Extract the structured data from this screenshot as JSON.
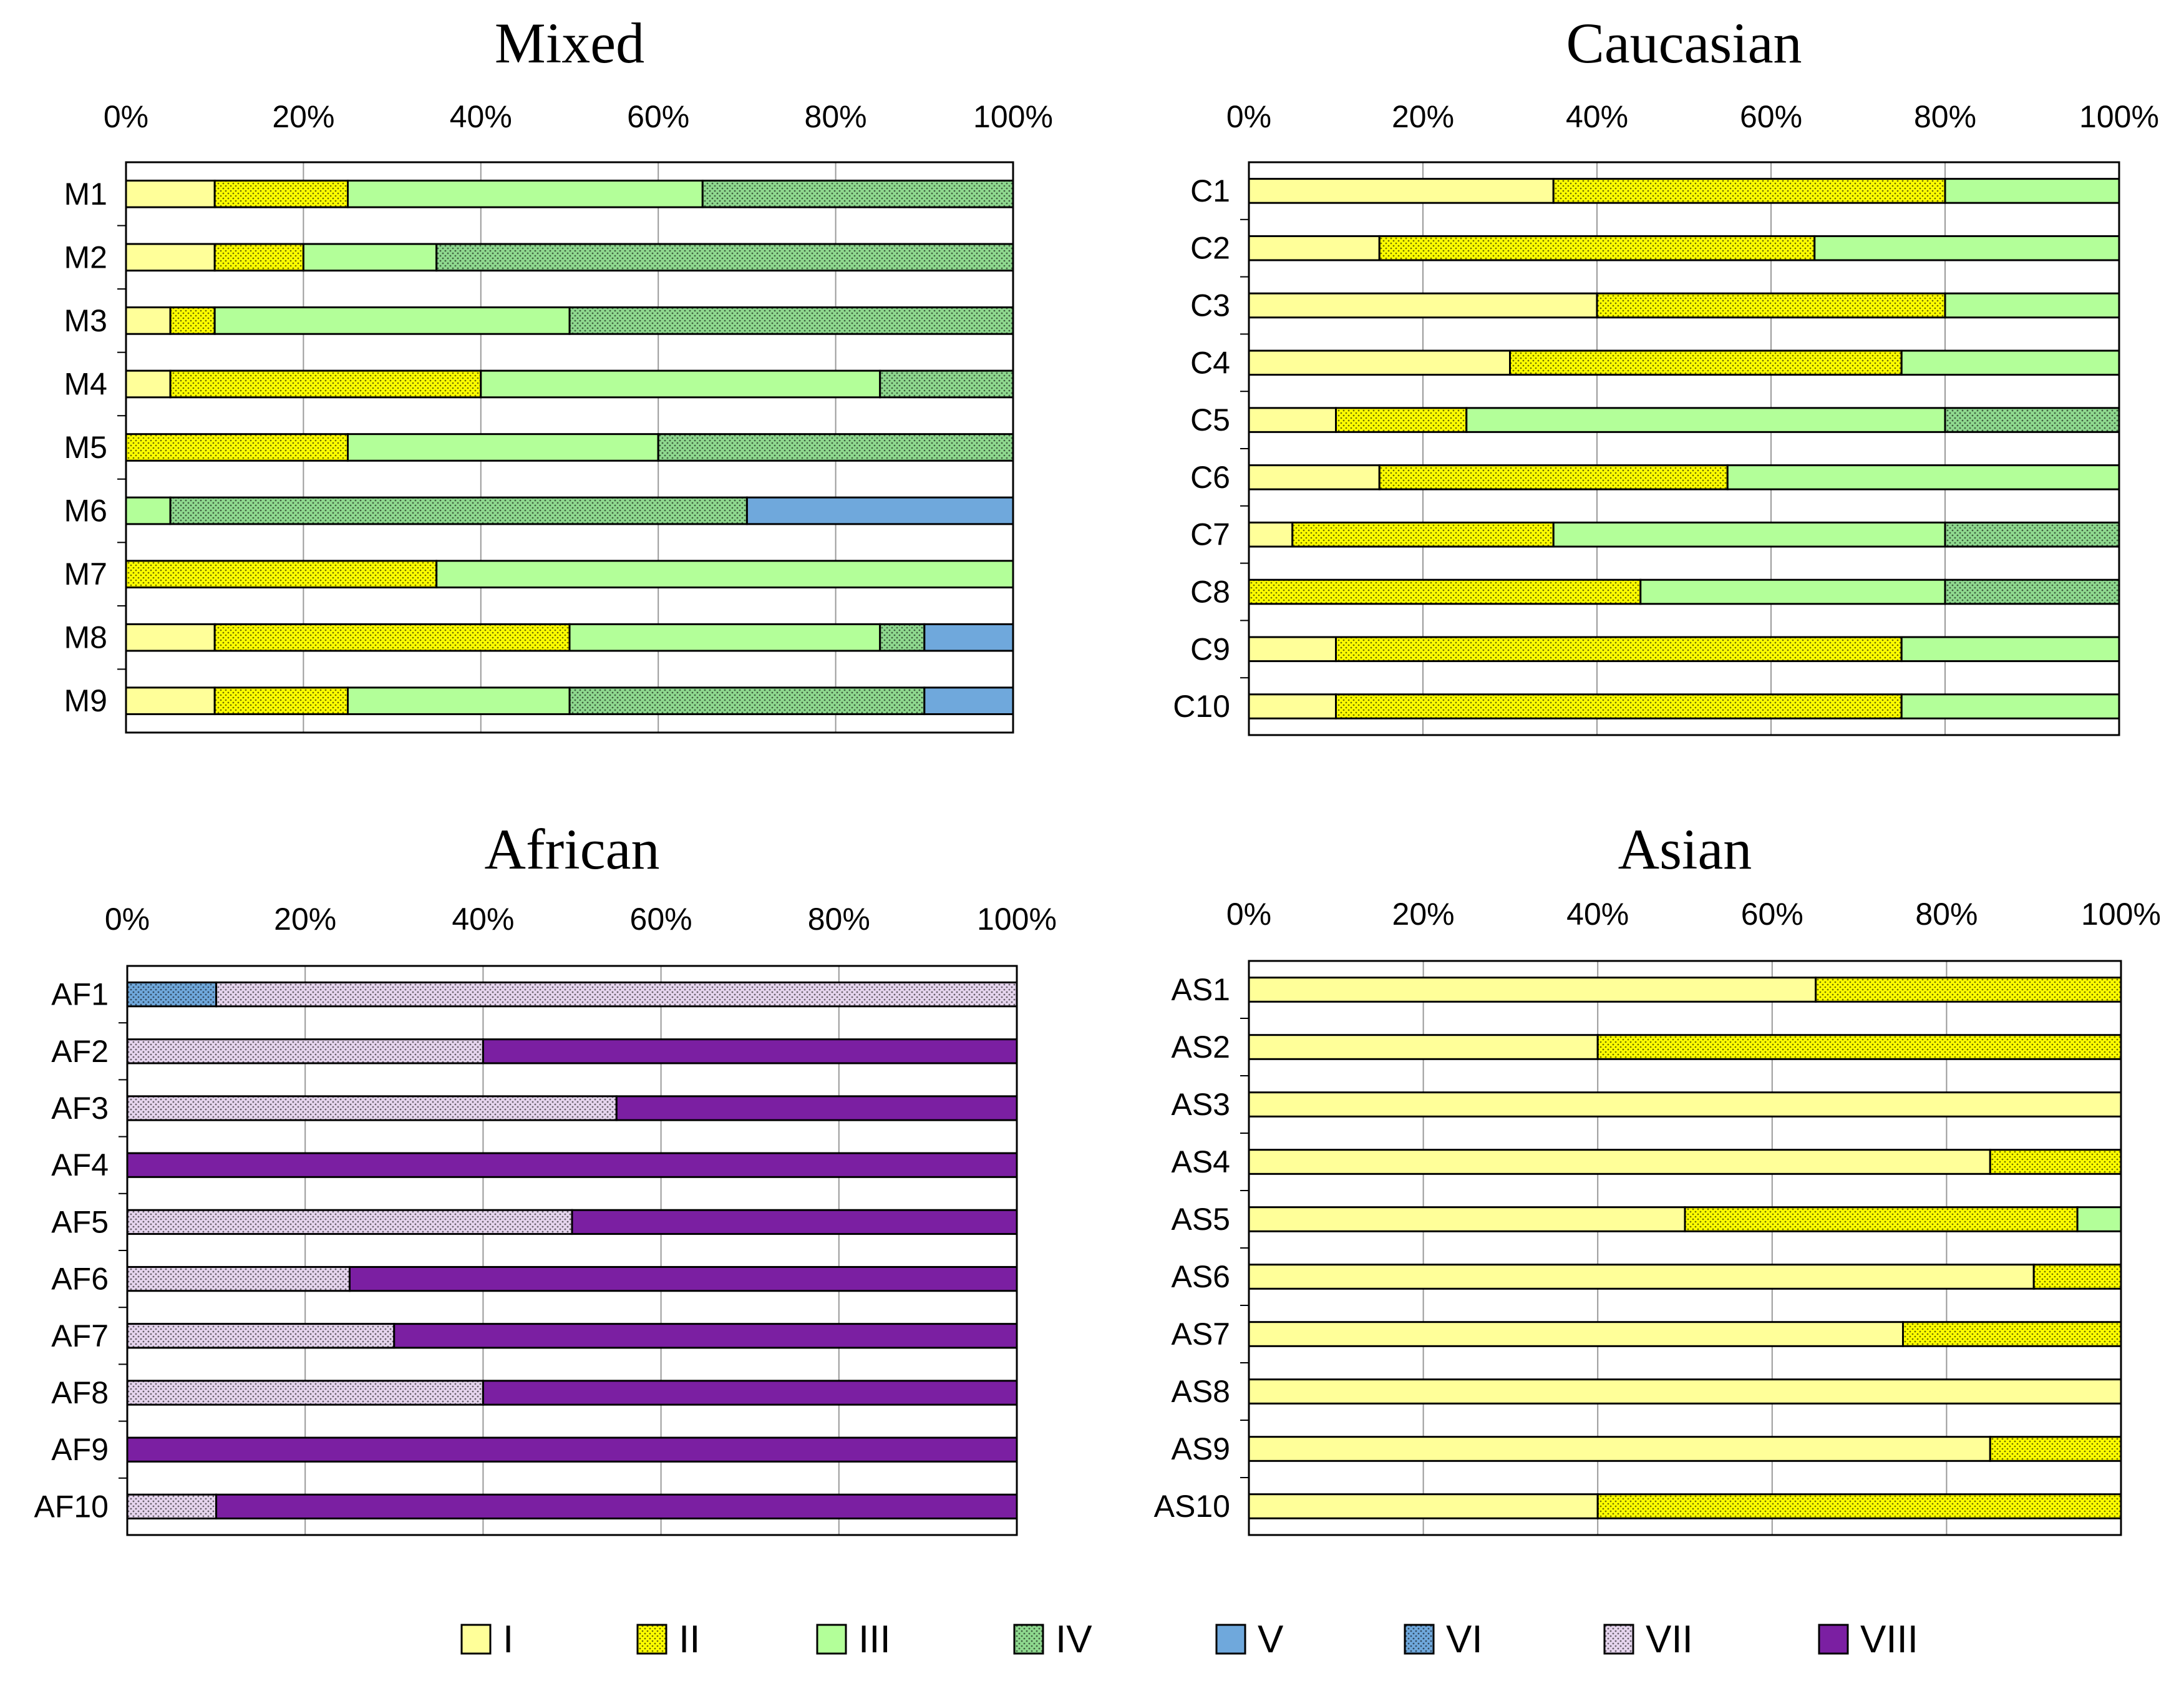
{
  "chart_data": [
    {
      "type": "bar",
      "orientation": "horizontal",
      "stacked": true,
      "title": "Mixed",
      "categories": [
        "M1",
        "M2",
        "M3",
        "M4",
        "M5",
        "M6",
        "M7",
        "M8",
        "M9"
      ],
      "xlim": [
        0,
        100
      ],
      "xticks": [
        "0%",
        "20%",
        "40%",
        "60%",
        "80%",
        "100%"
      ],
      "series": [
        {
          "name": "I",
          "values": [
            10,
            10,
            5,
            5,
            0,
            0,
            0,
            10,
            10
          ]
        },
        {
          "name": "II",
          "values": [
            15,
            10,
            5,
            35,
            25,
            0,
            35,
            40,
            15
          ]
        },
        {
          "name": "III",
          "values": [
            40,
            15,
            40,
            45,
            35,
            5,
            65,
            35,
            25
          ]
        },
        {
          "name": "IV",
          "values": [
            35,
            65,
            50,
            15,
            40,
            65,
            0,
            5,
            40
          ]
        },
        {
          "name": "V",
          "values": [
            0,
            0,
            0,
            0,
            0,
            30,
            0,
            10,
            10
          ]
        },
        {
          "name": "VI",
          "values": [
            0,
            0,
            0,
            0,
            0,
            0,
            0,
            0,
            0
          ]
        },
        {
          "name": "VII",
          "values": [
            0,
            0,
            0,
            0,
            0,
            0,
            0,
            0,
            0
          ]
        },
        {
          "name": "VIII",
          "values": [
            0,
            0,
            0,
            0,
            0,
            0,
            0,
            0,
            0
          ]
        }
      ]
    },
    {
      "type": "bar",
      "orientation": "horizontal",
      "stacked": true,
      "title": "Caucasian",
      "categories": [
        "C1",
        "C2",
        "C3",
        "C4",
        "C5",
        "C6",
        "C7",
        "C8",
        "C9",
        "C10"
      ],
      "xlim": [
        0,
        100
      ],
      "xticks": [
        "0%",
        "20%",
        "40%",
        "60%",
        "80%",
        "100%"
      ],
      "series": [
        {
          "name": "I",
          "values": [
            35,
            15,
            40,
            30,
            10,
            15,
            5,
            0,
            10,
            10
          ]
        },
        {
          "name": "II",
          "values": [
            45,
            50,
            40,
            45,
            15,
            40,
            30,
            45,
            65,
            65
          ]
        },
        {
          "name": "III",
          "values": [
            20,
            35,
            20,
            25,
            55,
            45,
            45,
            35,
            25,
            25
          ]
        },
        {
          "name": "IV",
          "values": [
            0,
            0,
            0,
            0,
            20,
            0,
            20,
            20,
            0,
            0
          ]
        },
        {
          "name": "V",
          "values": [
            0,
            0,
            0,
            0,
            0,
            0,
            0,
            0,
            0,
            0
          ]
        },
        {
          "name": "VI",
          "values": [
            0,
            0,
            0,
            0,
            0,
            0,
            0,
            0,
            0,
            0
          ]
        },
        {
          "name": "VII",
          "values": [
            0,
            0,
            0,
            0,
            0,
            0,
            0,
            0,
            0,
            0
          ]
        },
        {
          "name": "VIII",
          "values": [
            0,
            0,
            0,
            0,
            0,
            0,
            0,
            0,
            0,
            0
          ]
        }
      ]
    },
    {
      "type": "bar",
      "orientation": "horizontal",
      "stacked": true,
      "title": "African",
      "categories": [
        "AF1",
        "AF2",
        "AF3",
        "AF4",
        "AF5",
        "AF6",
        "AF7",
        "AF8",
        "AF9",
        "AF10"
      ],
      "xlim": [
        0,
        100
      ],
      "xticks": [
        "0%",
        "20%",
        "40%",
        "60%",
        "80%",
        "100%"
      ],
      "series": [
        {
          "name": "I",
          "values": [
            0,
            0,
            0,
            0,
            0,
            0,
            0,
            0,
            0,
            0
          ]
        },
        {
          "name": "II",
          "values": [
            0,
            0,
            0,
            0,
            0,
            0,
            0,
            0,
            0,
            0
          ]
        },
        {
          "name": "III",
          "values": [
            0,
            0,
            0,
            0,
            0,
            0,
            0,
            0,
            0,
            0
          ]
        },
        {
          "name": "IV",
          "values": [
            0,
            0,
            0,
            0,
            0,
            0,
            0,
            0,
            0,
            0
          ]
        },
        {
          "name": "V",
          "values": [
            0,
            0,
            0,
            0,
            0,
            0,
            0,
            0,
            0,
            0
          ]
        },
        {
          "name": "VI",
          "values": [
            10,
            0,
            0,
            0,
            0,
            0,
            0,
            0,
            0,
            0
          ]
        },
        {
          "name": "VII",
          "values": [
            90,
            40,
            55,
            0,
            50,
            25,
            30,
            40,
            0,
            10
          ]
        },
        {
          "name": "VIII",
          "values": [
            0,
            60,
            45,
            100,
            50,
            75,
            70,
            60,
            100,
            90
          ]
        }
      ]
    },
    {
      "type": "bar",
      "orientation": "horizontal",
      "stacked": true,
      "title": "Asian",
      "categories": [
        "AS1",
        "AS2",
        "AS3",
        "AS4",
        "AS5",
        "AS6",
        "AS7",
        "AS8",
        "AS9",
        "AS10"
      ],
      "xlim": [
        0,
        100
      ],
      "xticks": [
        "0%",
        "20%",
        "40%",
        "60%",
        "80%",
        "100%"
      ],
      "series": [
        {
          "name": "I",
          "values": [
            65,
            40,
            100,
            85,
            50,
            90,
            75,
            100,
            85,
            40
          ]
        },
        {
          "name": "II",
          "values": [
            35,
            60,
            0,
            15,
            45,
            10,
            25,
            0,
            15,
            60
          ]
        },
        {
          "name": "III",
          "values": [
            0,
            0,
            0,
            0,
            5,
            0,
            0,
            0,
            0,
            0
          ]
        },
        {
          "name": "IV",
          "values": [
            0,
            0,
            0,
            0,
            0,
            0,
            0,
            0,
            0,
            0
          ]
        },
        {
          "name": "V",
          "values": [
            0,
            0,
            0,
            0,
            0,
            0,
            0,
            0,
            0,
            0
          ]
        },
        {
          "name": "VI",
          "values": [
            0,
            0,
            0,
            0,
            0,
            0,
            0,
            0,
            0,
            0
          ]
        },
        {
          "name": "VII",
          "values": [
            0,
            0,
            0,
            0,
            0,
            0,
            0,
            0,
            0,
            0
          ]
        },
        {
          "name": "VIII",
          "values": [
            0,
            0,
            0,
            0,
            0,
            0,
            0,
            0,
            0,
            0
          ]
        }
      ]
    }
  ],
  "legend": {
    "position": "bottom",
    "items": [
      {
        "label": "I",
        "color": "#ffff99",
        "pattern": "none"
      },
      {
        "label": "II",
        "color": "#ffff00",
        "pattern": "dots"
      },
      {
        "label": "III",
        "color": "#b3ff99",
        "pattern": "none"
      },
      {
        "label": "IV",
        "color": "#8fd98f",
        "pattern": "dots"
      },
      {
        "label": "V",
        "color": "#6fa8dc",
        "pattern": "none"
      },
      {
        "label": "VI",
        "color": "#6fa8dc",
        "pattern": "dots"
      },
      {
        "label": "VII",
        "color": "#e6d5ee",
        "pattern": "dots"
      },
      {
        "label": "VIII",
        "color": "#7b1fa2",
        "pattern": "none"
      }
    ]
  }
}
